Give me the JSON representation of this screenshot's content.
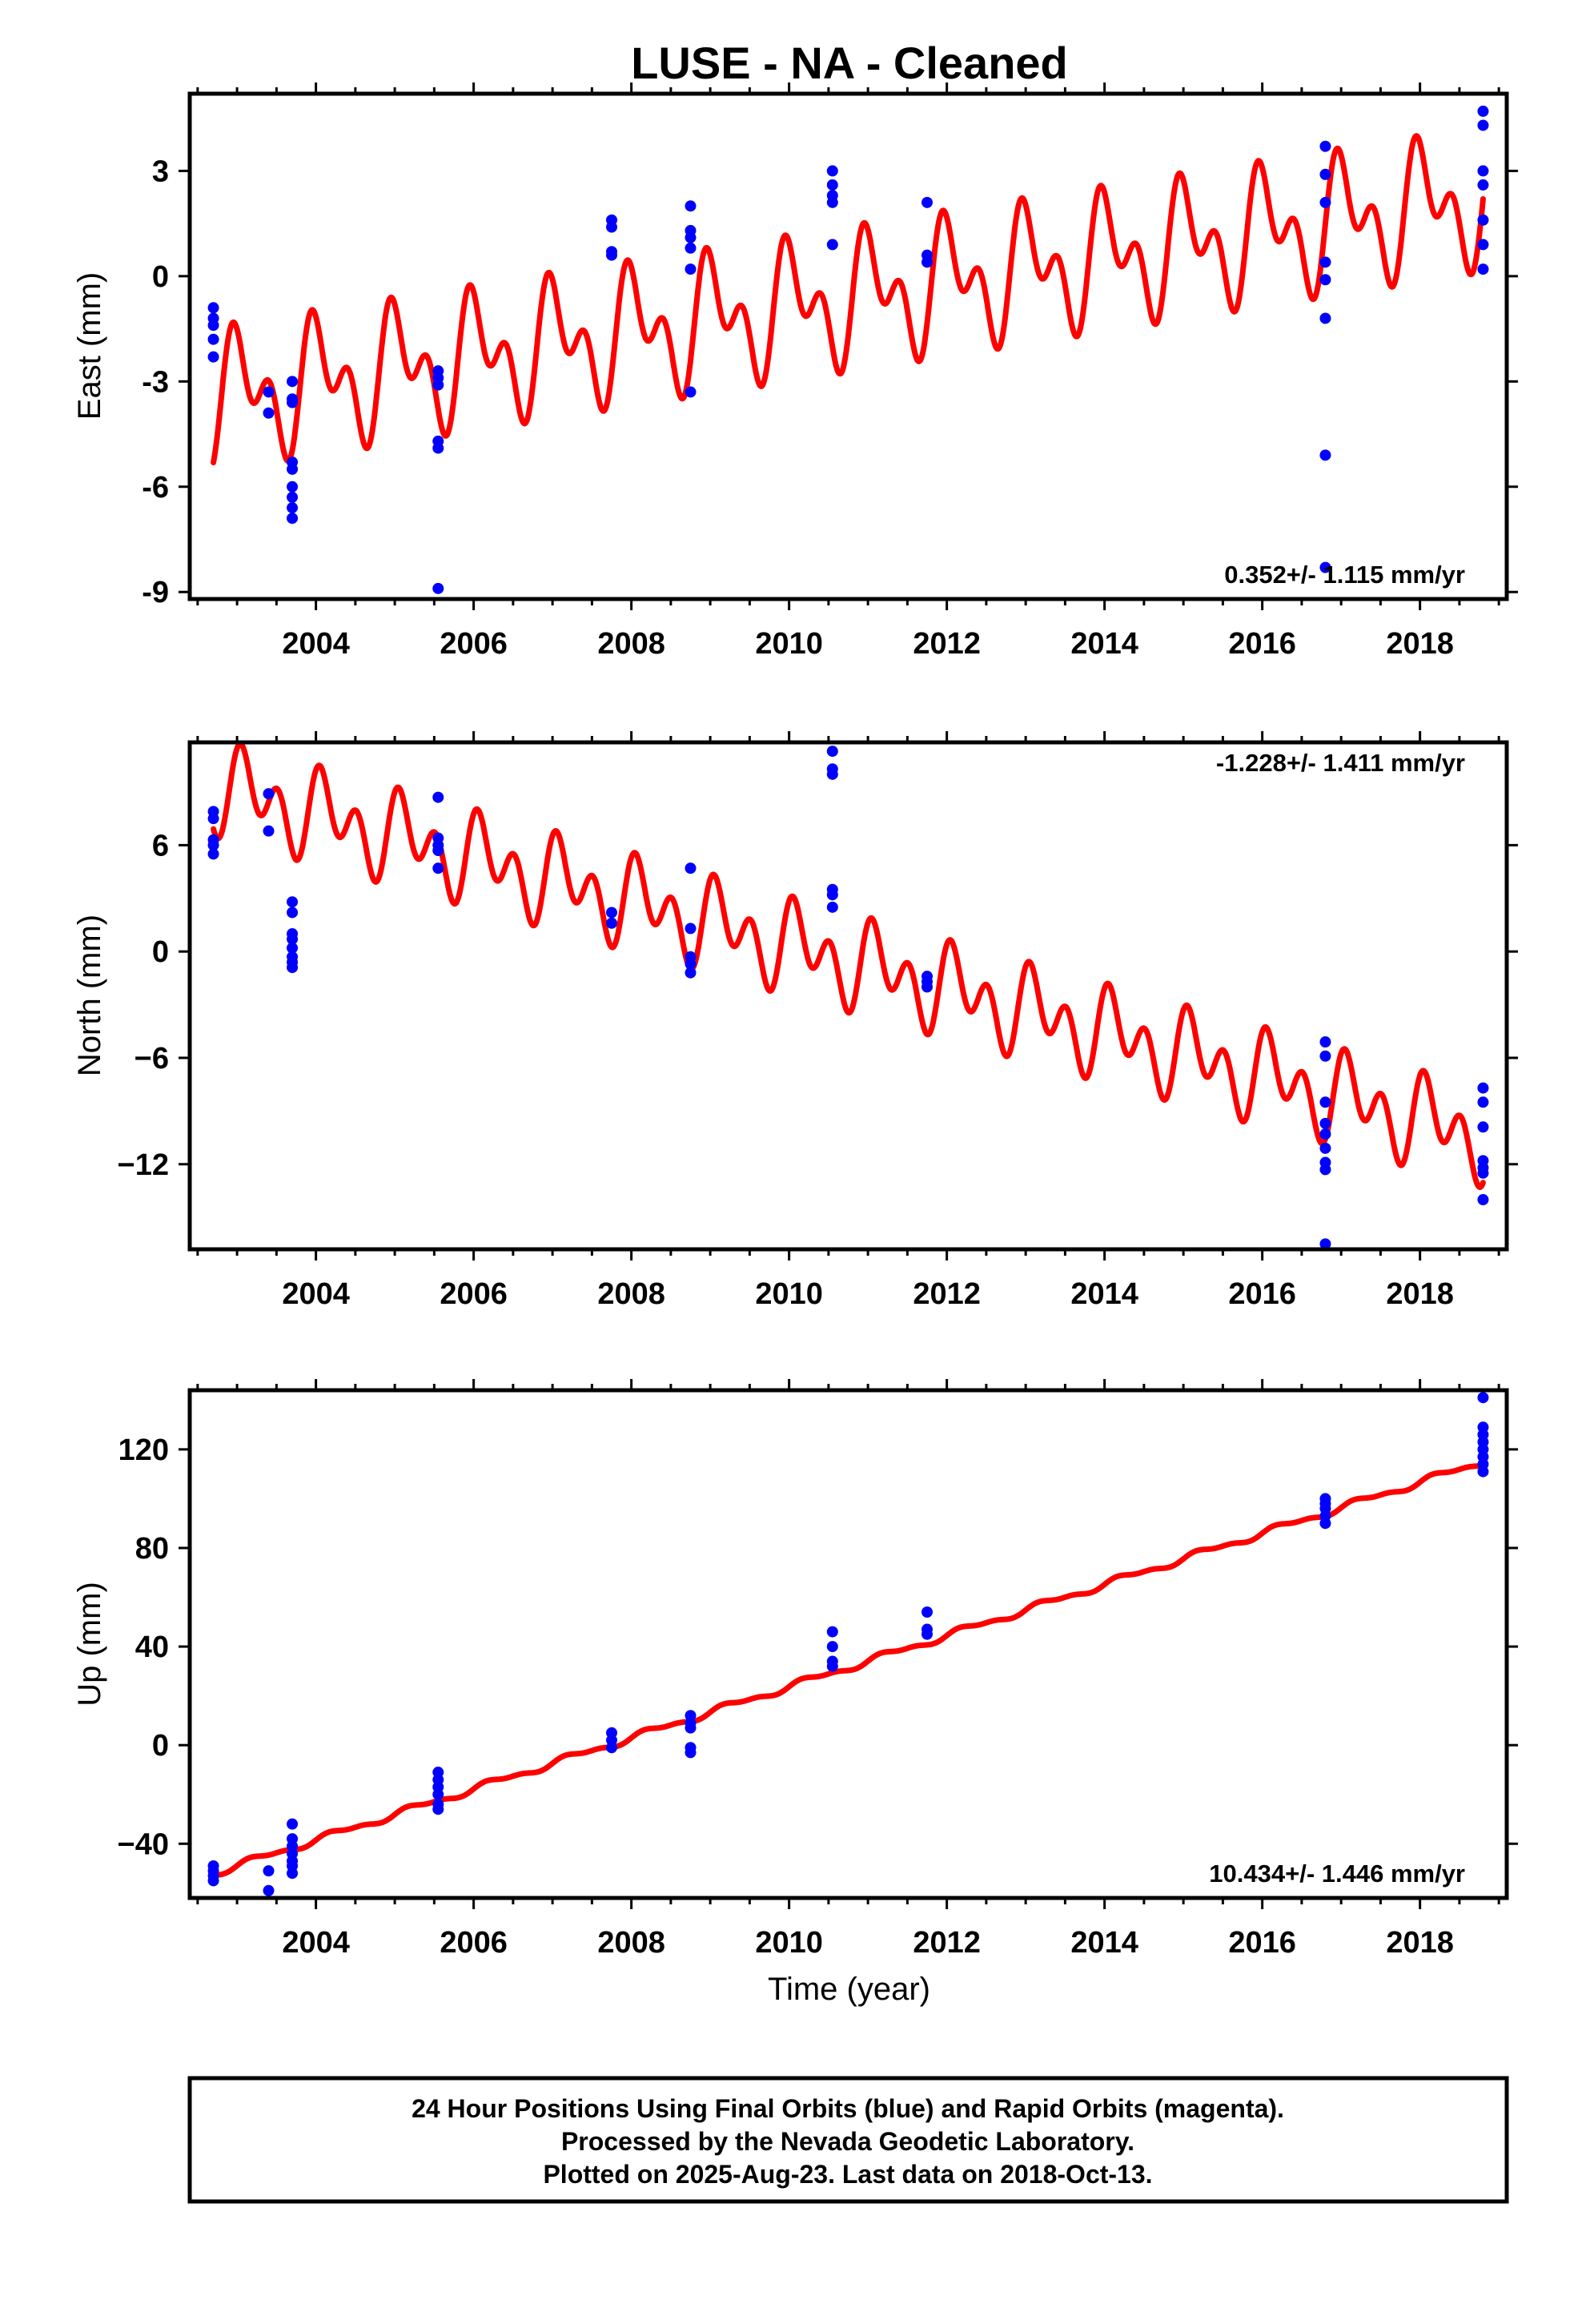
{
  "title": "LUSE  - NA - Cleaned",
  "colors": {
    "data": "#0000ff",
    "model": "#ff0000",
    "frame": "#000000"
  },
  "chart_data": [
    {
      "type": "scatter",
      "id": "east",
      "ylabel": "East (mm)",
      "xlim": [
        2002.4,
        2019.1
      ],
      "ylim": [
        -9.2,
        5.2
      ],
      "x_ticks": [
        2004,
        2006,
        2008,
        2010,
        2012,
        2014,
        2016,
        2018
      ],
      "x_tick_labels": [
        "2004",
        "2006",
        "2008",
        "2010",
        "2012",
        "2014",
        "2016",
        "2018"
      ],
      "y_ticks": [
        -9,
        -6,
        -3,
        0,
        3
      ],
      "y_tick_labels": [
        "-9",
        "-6",
        "-3",
        "0",
        "3"
      ],
      "rate_label": "0.352+/- 1.115 mm/yr",
      "rate_position": "bottom-right",
      "model": {
        "start_x": 2002.7,
        "end_x": 2018.8,
        "start_y": -3.5,
        "end_y": 2.2,
        "annual_amplitude": 1.3,
        "semiannual_amplitude": 1.1,
        "phase": 0.2
      },
      "points": [
        [
          2002.7,
          -0.9
        ],
        [
          2002.7,
          -1.2
        ],
        [
          2002.7,
          -1.4
        ],
        [
          2002.7,
          -1.8
        ],
        [
          2002.7,
          -2.3
        ],
        [
          2003.4,
          -3.3
        ],
        [
          2003.4,
          -3.9
        ],
        [
          2003.7,
          -3.0
        ],
        [
          2003.7,
          -3.5
        ],
        [
          2003.7,
          -3.6
        ],
        [
          2003.7,
          -5.3
        ],
        [
          2003.7,
          -5.5
        ],
        [
          2003.7,
          -6.0
        ],
        [
          2003.7,
          -6.3
        ],
        [
          2003.7,
          -6.6
        ],
        [
          2003.7,
          -6.9
        ],
        [
          2005.55,
          -2.7
        ],
        [
          2005.55,
          -2.9
        ],
        [
          2005.55,
          -3.1
        ],
        [
          2005.55,
          -4.7
        ],
        [
          2005.55,
          -4.9
        ],
        [
          2005.55,
          -8.9
        ],
        [
          2007.75,
          1.6
        ],
        [
          2007.75,
          1.4
        ],
        [
          2007.75,
          0.7
        ],
        [
          2007.75,
          0.6
        ],
        [
          2008.75,
          2.0
        ],
        [
          2008.75,
          1.3
        ],
        [
          2008.75,
          1.1
        ],
        [
          2008.75,
          0.8
        ],
        [
          2008.75,
          0.2
        ],
        [
          2008.75,
          -3.3
        ],
        [
          2010.55,
          3.0
        ],
        [
          2010.55,
          2.6
        ],
        [
          2010.55,
          2.3
        ],
        [
          2010.55,
          2.1
        ],
        [
          2010.55,
          0.9
        ],
        [
          2011.75,
          2.1
        ],
        [
          2011.75,
          0.6
        ],
        [
          2011.75,
          0.4
        ],
        [
          2016.8,
          3.7
        ],
        [
          2016.8,
          2.9
        ],
        [
          2016.8,
          2.1
        ],
        [
          2016.8,
          0.4
        ],
        [
          2016.8,
          -0.1
        ],
        [
          2016.8,
          -1.2
        ],
        [
          2016.8,
          -5.1
        ],
        [
          2016.8,
          -8.3
        ],
        [
          2018.8,
          4.7
        ],
        [
          2018.8,
          4.3
        ],
        [
          2018.8,
          3.0
        ],
        [
          2018.8,
          2.6
        ],
        [
          2018.8,
          1.6
        ],
        [
          2018.8,
          0.9
        ],
        [
          2018.8,
          0.2
        ]
      ]
    },
    {
      "type": "scatter",
      "id": "north",
      "ylabel": "North (mm)",
      "xlim": [
        2002.4,
        2019.1
      ],
      "ylim": [
        -16.8,
        11.8
      ],
      "x_ticks": [
        2004,
        2006,
        2008,
        2010,
        2012,
        2014,
        2016,
        2018
      ],
      "x_tick_labels": [
        "2004",
        "2006",
        "2008",
        "2010",
        "2012",
        "2014",
        "2016",
        "2018"
      ],
      "y_ticks": [
        -12,
        -6,
        0,
        6
      ],
      "y_tick_labels": [
        "−12",
        "−6",
        "0",
        "6"
      ],
      "rate_label": "-1.228+/- 1.411 mm/yr",
      "rate_position": "top-right",
      "model": {
        "start_x": 2002.7,
        "end_x": 2018.8,
        "start_y": 9.3,
        "end_y": -10.5,
        "annual_amplitude": 1.4,
        "semiannual_amplitude": 1.8,
        "phase": 0.1
      },
      "points": [
        [
          2002.7,
          7.9
        ],
        [
          2002.7,
          7.5
        ],
        [
          2002.7,
          6.3
        ],
        [
          2002.7,
          6.0
        ],
        [
          2002.7,
          5.5
        ],
        [
          2003.4,
          8.9
        ],
        [
          2003.4,
          6.8
        ],
        [
          2003.7,
          2.8
        ],
        [
          2003.7,
          2.2
        ],
        [
          2003.7,
          1.0
        ],
        [
          2003.7,
          0.7
        ],
        [
          2003.7,
          0.2
        ],
        [
          2003.7,
          -0.3
        ],
        [
          2003.7,
          -0.6
        ],
        [
          2003.7,
          -0.9
        ],
        [
          2005.55,
          8.7
        ],
        [
          2005.55,
          6.4
        ],
        [
          2005.55,
          6.0
        ],
        [
          2005.55,
          5.7
        ],
        [
          2005.55,
          4.7
        ],
        [
          2007.75,
          2.2
        ],
        [
          2007.75,
          1.6
        ],
        [
          2008.75,
          4.7
        ],
        [
          2008.75,
          1.3
        ],
        [
          2008.75,
          -0.3
        ],
        [
          2008.75,
          -0.7
        ],
        [
          2008.75,
          -1.2
        ],
        [
          2010.55,
          11.3
        ],
        [
          2010.55,
          10.3
        ],
        [
          2010.55,
          10.0
        ],
        [
          2010.55,
          3.5
        ],
        [
          2010.55,
          3.2
        ],
        [
          2010.55,
          2.5
        ],
        [
          2011.75,
          -1.4
        ],
        [
          2011.75,
          -1.7
        ],
        [
          2011.75,
          -2.0
        ],
        [
          2016.8,
          -5.1
        ],
        [
          2016.8,
          -5.9
        ],
        [
          2016.8,
          -8.5
        ],
        [
          2016.8,
          -9.7
        ],
        [
          2016.8,
          -10.3
        ],
        [
          2016.8,
          -11.1
        ],
        [
          2016.8,
          -11.9
        ],
        [
          2016.8,
          -12.3
        ],
        [
          2016.8,
          -16.5
        ],
        [
          2018.8,
          -7.7
        ],
        [
          2018.8,
          -8.5
        ],
        [
          2018.8,
          -9.9
        ],
        [
          2018.8,
          -11.8
        ],
        [
          2018.8,
          -12.2
        ],
        [
          2018.8,
          -12.5
        ],
        [
          2018.8,
          -14.0
        ]
      ]
    },
    {
      "type": "scatter",
      "id": "up",
      "ylabel": "Up (mm)",
      "xlim": [
        2002.4,
        2019.1
      ],
      "ylim": [
        -62,
        144
      ],
      "x_ticks": [
        2004,
        2006,
        2008,
        2010,
        2012,
        2014,
        2016,
        2018
      ],
      "x_tick_labels": [
        "2004",
        "2006",
        "2008",
        "2010",
        "2012",
        "2014",
        "2016",
        "2018"
      ],
      "y_ticks": [
        -40,
        0,
        40,
        80,
        120
      ],
      "y_tick_labels": [
        "−40",
        "0",
        "40",
        "80",
        "120"
      ],
      "xlabel": "Time (year)",
      "rate_label": "10.434+/- 1.446 mm/yr",
      "rate_position": "bottom-right",
      "model": {
        "start_x": 2002.7,
        "end_x": 2018.8,
        "start_y": -52.0,
        "end_y": 115.0,
        "annual_amplitude": 1.2,
        "semiannual_amplitude": 0.6,
        "phase": 0.0
      },
      "points": [
        [
          2002.7,
          -49
        ],
        [
          2002.7,
          -51
        ],
        [
          2002.7,
          -53
        ],
        [
          2002.7,
          -55
        ],
        [
          2003.4,
          -51
        ],
        [
          2003.4,
          -59
        ],
        [
          2003.7,
          -32
        ],
        [
          2003.7,
          -38
        ],
        [
          2003.7,
          -41
        ],
        [
          2003.7,
          -44
        ],
        [
          2003.7,
          -47
        ],
        [
          2003.7,
          -49
        ],
        [
          2003.7,
          -52
        ],
        [
          2005.55,
          -11
        ],
        [
          2005.55,
          -14
        ],
        [
          2005.55,
          -17
        ],
        [
          2005.55,
          -20
        ],
        [
          2005.55,
          -24
        ],
        [
          2005.55,
          -26
        ],
        [
          2007.75,
          5
        ],
        [
          2007.75,
          2
        ],
        [
          2007.75,
          -1
        ],
        [
          2008.75,
          12
        ],
        [
          2008.75,
          9
        ],
        [
          2008.75,
          7
        ],
        [
          2008.75,
          -1
        ],
        [
          2008.75,
          -3
        ],
        [
          2010.55,
          46
        ],
        [
          2010.55,
          40
        ],
        [
          2010.55,
          34
        ],
        [
          2010.55,
          32
        ],
        [
          2011.75,
          54
        ],
        [
          2011.75,
          47
        ],
        [
          2011.75,
          45
        ],
        [
          2016.8,
          100
        ],
        [
          2016.8,
          98
        ],
        [
          2016.8,
          96
        ],
        [
          2016.8,
          93
        ],
        [
          2016.8,
          90
        ],
        [
          2018.8,
          141
        ],
        [
          2018.8,
          129
        ],
        [
          2018.8,
          126
        ],
        [
          2018.8,
          123
        ],
        [
          2018.8,
          120
        ],
        [
          2018.8,
          117
        ],
        [
          2018.8,
          114
        ],
        [
          2018.8,
          111
        ]
      ]
    }
  ],
  "info_box": {
    "line1": "24 Hour Positions Using Final Orbits (blue) and Rapid Orbits (magenta).",
    "line2": "Processed by the Nevada Geodetic Laboratory.",
    "line3": "Plotted on 2025-Aug-23. Last data on 2018-Oct-13."
  }
}
